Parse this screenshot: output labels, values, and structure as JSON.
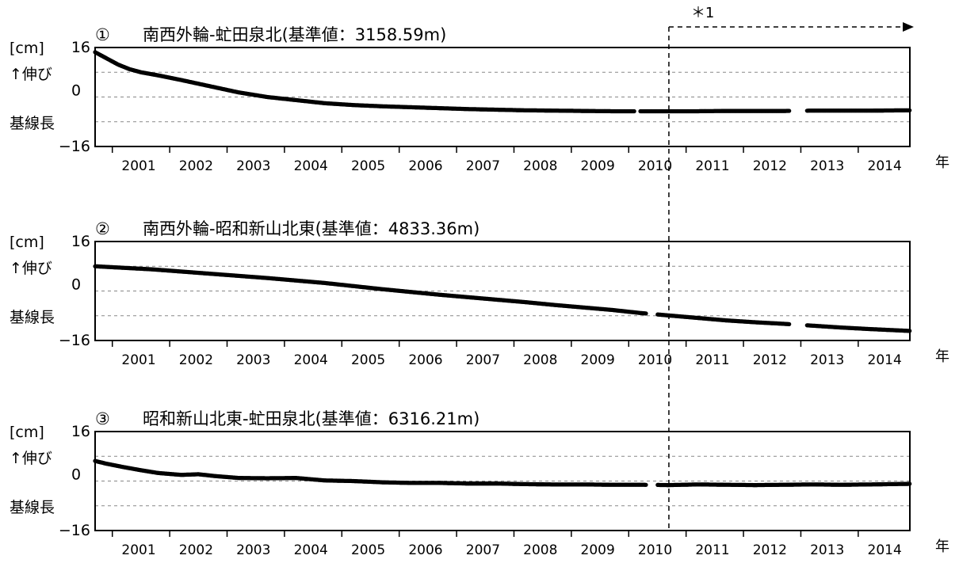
{
  "annotation": {
    "label": "＊1",
    "line_at_year": 2010.5
  },
  "y_axis": {
    "unit": "[cm]",
    "growth_label": "↑伸び",
    "baseline_label": "基線長",
    "ticks": [
      16,
      0,
      -16
    ],
    "tick_labels": [
      "16",
      "0",
      "−16"
    ]
  },
  "x_axis": {
    "year_suffix": "年",
    "tick_labels": [
      "2001",
      "2002",
      "2003",
      "2004",
      "2005",
      "2006",
      "2007",
      "2008",
      "2009",
      "2010",
      "2011",
      "2012",
      "2013",
      "2014"
    ]
  },
  "chart_data": [
    {
      "type": "scatter",
      "marker": "①",
      "title": "南西外輪-虻田泉北(基準値：3158.59m)",
      "ylim": [
        -16,
        16
      ],
      "xlim": [
        2000.5,
        2014.7
      ],
      "grid": true,
      "gaps": [
        [
          2009.9,
          2010.0
        ],
        [
          2012.6,
          2012.9
        ]
      ],
      "series": [
        {
          "x": [
            2000.5,
            2000.7,
            2000.9,
            2001.1,
            2001.3,
            2001.6,
            2002.0,
            2002.5,
            2003.0,
            2003.5,
            2004.0,
            2004.5,
            2005.0,
            2005.5,
            2006.0,
            2006.5,
            2007.0,
            2007.5,
            2008.0,
            2008.5,
            2009.0,
            2009.5,
            2010.0,
            2010.5,
            2011.0,
            2011.5,
            2012.0,
            2012.5,
            2013.0,
            2013.5,
            2014.0,
            2014.7
          ],
          "y": [
            14.5,
            12.5,
            10.5,
            9.0,
            8.0,
            7.0,
            5.5,
            3.5,
            1.5,
            0.0,
            -1.0,
            -2.0,
            -2.6,
            -3.0,
            -3.3,
            -3.6,
            -3.9,
            -4.1,
            -4.3,
            -4.4,
            -4.5,
            -4.6,
            -4.6,
            -4.6,
            -4.6,
            -4.5,
            -4.5,
            -4.5,
            -4.4,
            -4.4,
            -4.4,
            -4.3
          ]
        }
      ]
    },
    {
      "type": "scatter",
      "marker": "②",
      "title": "南西外輪-昭和新山北東(基準値：4833.36m)",
      "ylim": [
        -16,
        16
      ],
      "xlim": [
        2000.5,
        2014.7
      ],
      "grid": true,
      "gaps": [
        [
          2010.1,
          2010.3
        ],
        [
          2012.6,
          2012.9
        ]
      ],
      "series": [
        {
          "x": [
            2000.5,
            2001.0,
            2001.5,
            2002.0,
            2002.5,
            2003.0,
            2003.5,
            2004.0,
            2004.5,
            2005.0,
            2005.5,
            2006.0,
            2006.5,
            2007.0,
            2007.5,
            2008.0,
            2008.5,
            2009.0,
            2009.5,
            2010.0,
            2010.5,
            2011.0,
            2011.5,
            2012.0,
            2012.5,
            2013.0,
            2013.5,
            2014.0,
            2014.7
          ],
          "y": [
            8.0,
            7.5,
            7.0,
            6.3,
            5.6,
            4.9,
            4.2,
            3.4,
            2.6,
            1.6,
            0.6,
            -0.3,
            -1.2,
            -2.0,
            -2.8,
            -3.6,
            -4.5,
            -5.3,
            -6.1,
            -7.1,
            -7.9,
            -8.7,
            -9.5,
            -10.1,
            -10.6,
            -11.2,
            -11.8,
            -12.3,
            -12.9
          ]
        }
      ]
    },
    {
      "type": "scatter",
      "marker": "③",
      "title": "昭和新山北東-虻田泉北(基準値：6316.21m)",
      "ylim": [
        -16,
        16
      ],
      "xlim": [
        2000.5,
        2014.7
      ],
      "grid": true,
      "gaps": [
        [
          2010.1,
          2010.3
        ]
      ],
      "series": [
        {
          "x": [
            2000.5,
            2000.7,
            2001.0,
            2001.3,
            2001.6,
            2002.0,
            2002.3,
            2002.6,
            2003.0,
            2003.5,
            2004.0,
            2004.5,
            2005.0,
            2005.5,
            2006.0,
            2006.5,
            2007.0,
            2007.5,
            2008.0,
            2008.5,
            2009.0,
            2009.5,
            2010.0,
            2010.5,
            2011.0,
            2011.5,
            2012.0,
            2012.5,
            2013.0,
            2013.5,
            2014.0,
            2014.7
          ],
          "y": [
            6.5,
            5.6,
            4.5,
            3.5,
            2.6,
            2.0,
            2.2,
            1.6,
            1.0,
            0.9,
            1.0,
            0.2,
            0.0,
            -0.4,
            -0.6,
            -0.6,
            -0.8,
            -0.8,
            -1.0,
            -1.1,
            -1.1,
            -1.2,
            -1.2,
            -1.3,
            -1.1,
            -1.2,
            -1.3,
            -1.2,
            -1.1,
            -1.2,
            -1.1,
            -0.9
          ]
        }
      ]
    }
  ]
}
